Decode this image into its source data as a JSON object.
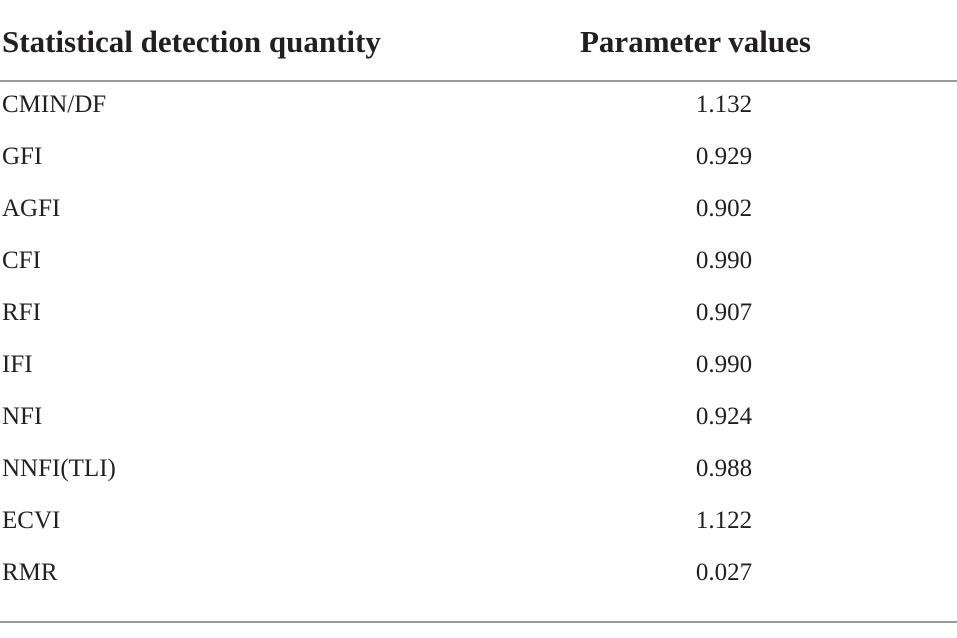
{
  "table": {
    "header": [
      "Statistical detection quantity",
      "Parameter values"
    ],
    "rows": [
      [
        "CMIN/DF",
        "1.132"
      ],
      [
        "GFI",
        "0.929"
      ],
      [
        "AGFI",
        "0.902"
      ],
      [
        "CFI",
        "0.990"
      ],
      [
        "RFI",
        "0.907"
      ],
      [
        "IFI",
        "0.990"
      ],
      [
        "NFI",
        "0.924"
      ],
      [
        "NNFI(TLI)",
        "0.988"
      ],
      [
        "ECVI",
        "1.122"
      ],
      [
        "RMR",
        "0.027"
      ]
    ]
  }
}
